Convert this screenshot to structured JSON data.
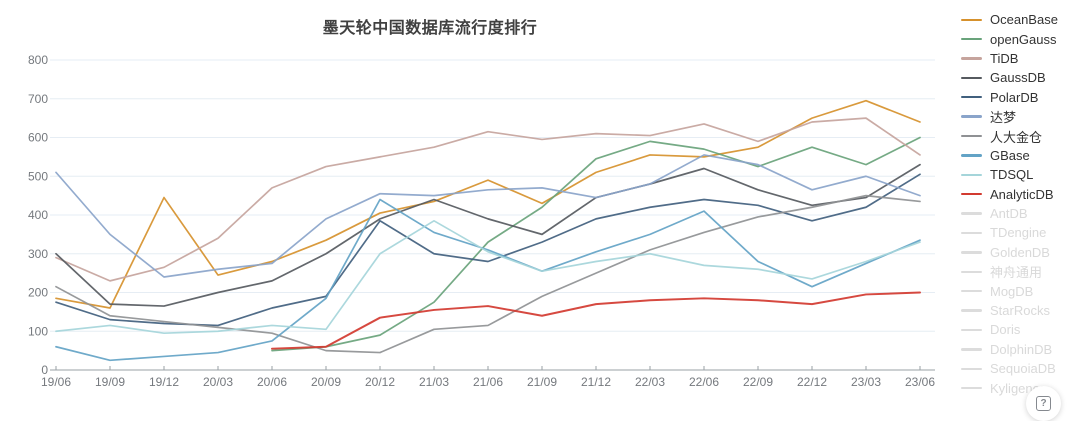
{
  "title": "墨天轮中国数据库流行度排行",
  "help_button": {
    "icon": "question-mark-icon"
  },
  "chart_data": {
    "type": "line",
    "title": "墨天轮中国数据库流行度排行",
    "xlabel": "",
    "ylabel": "",
    "ylim": [
      0,
      800
    ],
    "y_ticks": [
      0,
      100,
      200,
      300,
      400,
      500,
      600,
      700,
      800
    ],
    "grid": "horizontal",
    "legend_position": "right",
    "x_labels": [
      "19/06",
      "19/09",
      "19/12",
      "20/03",
      "20/06",
      "20/09",
      "20/12",
      "21/03",
      "21/06",
      "21/09",
      "21/12",
      "22/03",
      "22/06",
      "22/09",
      "22/12",
      "23/03",
      "23/06"
    ],
    "series": [
      {
        "name": "OceanBase",
        "color": "#d6912c",
        "enabled": true,
        "values": [
          185,
          160,
          445,
          245,
          280,
          335,
          405,
          435,
          490,
          430,
          510,
          555,
          550,
          575,
          650,
          695,
          640
        ]
      },
      {
        "name": "openGauss",
        "color": "#69a37b",
        "enabled": true,
        "values": [
          null,
          null,
          null,
          null,
          50,
          60,
          90,
          175,
          330,
          420,
          545,
          590,
          570,
          525,
          575,
          530,
          600
        ]
      },
      {
        "name": "TiDB",
        "color": "#c6a49d",
        "enabled": true,
        "values": [
          290,
          230,
          265,
          340,
          470,
          525,
          550,
          575,
          615,
          595,
          610,
          605,
          635,
          590,
          640,
          650,
          555
        ]
      },
      {
        "name": "GaussDB",
        "color": "#565a5f",
        "enabled": true,
        "values": [
          300,
          170,
          165,
          200,
          230,
          300,
          390,
          440,
          390,
          350,
          445,
          480,
          520,
          465,
          425,
          445,
          530
        ]
      },
      {
        "name": "PolarDB",
        "color": "#41607e",
        "enabled": true,
        "values": [
          175,
          130,
          120,
          115,
          160,
          190,
          385,
          300,
          280,
          330,
          390,
          420,
          440,
          425,
          385,
          420,
          505
        ]
      },
      {
        "name": "达梦",
        "color": "#8aa4ca",
        "enabled": true,
        "values": [
          510,
          350,
          240,
          260,
          275,
          390,
          455,
          450,
          465,
          470,
          445,
          480,
          555,
          530,
          465,
          500,
          450
        ]
      },
      {
        "name": "人大金仓",
        "color": "#8f9194",
        "enabled": true,
        "values": [
          215,
          140,
          125,
          110,
          95,
          50,
          45,
          105,
          115,
          190,
          250,
          310,
          355,
          395,
          420,
          450,
          435
        ]
      },
      {
        "name": "GBase",
        "color": "#63a3c6",
        "enabled": true,
        "values": [
          60,
          25,
          35,
          45,
          75,
          185,
          440,
          355,
          310,
          255,
          305,
          350,
          410,
          280,
          215,
          275,
          335
        ]
      },
      {
        "name": "TDSQL",
        "color": "#a5d5da",
        "enabled": true,
        "values": [
          100,
          115,
          95,
          100,
          115,
          105,
          300,
          385,
          305,
          255,
          280,
          300,
          270,
          260,
          235,
          280,
          330
        ]
      },
      {
        "name": "AnalyticDB",
        "color": "#d23a30",
        "enabled": true,
        "values": [
          null,
          null,
          null,
          null,
          55,
          60,
          135,
          155,
          165,
          140,
          170,
          180,
          185,
          180,
          170,
          195,
          200
        ]
      },
      {
        "name": "AntDB",
        "color": "#dcdcdc",
        "enabled": false,
        "values": []
      },
      {
        "name": "TDengine",
        "color": "#dcdcdc",
        "enabled": false,
        "values": []
      },
      {
        "name": "GoldenDB",
        "color": "#dcdcdc",
        "enabled": false,
        "values": []
      },
      {
        "name": "神舟通用",
        "color": "#dcdcdc",
        "enabled": false,
        "values": []
      },
      {
        "name": "MogDB",
        "color": "#dcdcdc",
        "enabled": false,
        "values": []
      },
      {
        "name": "StarRocks",
        "color": "#dcdcdc",
        "enabled": false,
        "values": []
      },
      {
        "name": "Doris",
        "color": "#dcdcdc",
        "enabled": false,
        "values": []
      },
      {
        "name": "DolphinDB",
        "color": "#dcdcdc",
        "enabled": false,
        "values": []
      },
      {
        "name": "SequoiaDB",
        "color": "#dcdcdc",
        "enabled": false,
        "values": []
      },
      {
        "name": "Kyligence",
        "color": "#dcdcdc",
        "enabled": false,
        "values": []
      }
    ],
    "help_label": "?"
  },
  "layout": {
    "plot": {
      "x_start": 56,
      "x_end": 920,
      "y_zero": 370,
      "y_top": 60
    }
  }
}
